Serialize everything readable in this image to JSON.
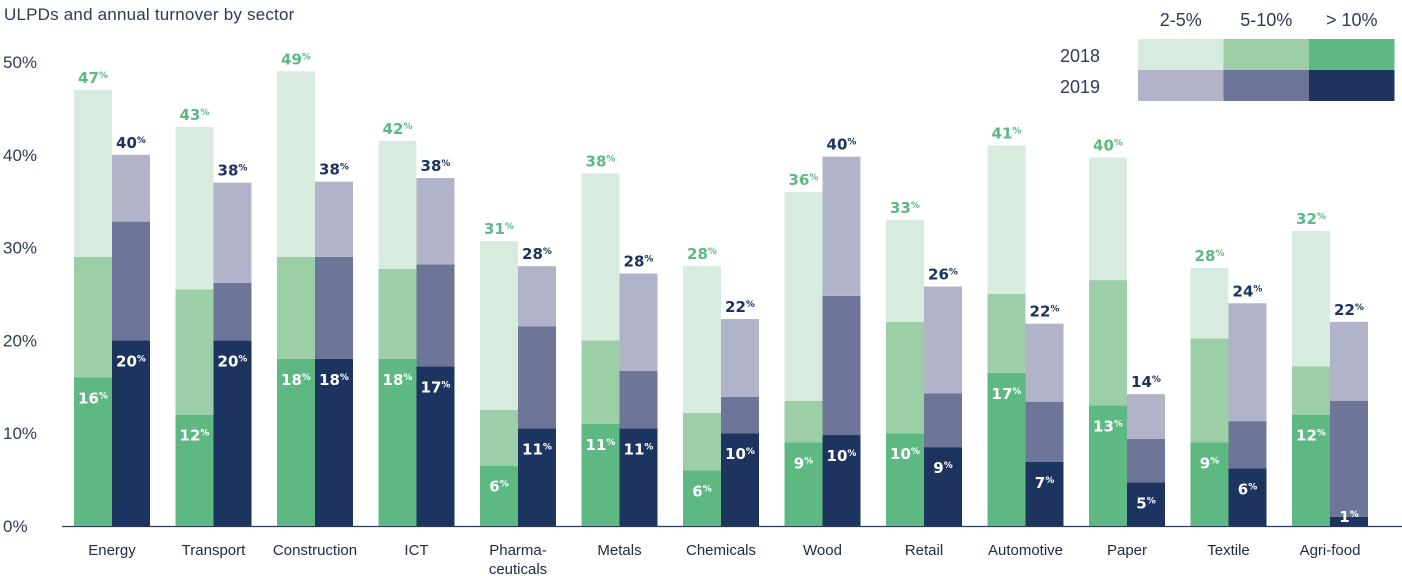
{
  "chart_data": {
    "type": "bar",
    "title": "ULPDs and annual turnover by sector",
    "categories": [
      "Energy",
      "Transport",
      "Construction",
      "ICT",
      "Pharma-ceuticals",
      "Metals",
      "Chemicals",
      "Wood",
      "Retail",
      "Automotive",
      "Paper",
      "Textile",
      "Agri-food"
    ],
    "category_lines": [
      [
        "Energy"
      ],
      [
        "Transport"
      ],
      [
        "Construction"
      ],
      [
        "ICT"
      ],
      [
        "Pharma-",
        "ceuticals"
      ],
      [
        "Metals"
      ],
      [
        "Chemicals"
      ],
      [
        "Wood"
      ],
      [
        "Retail"
      ],
      [
        "Automotive"
      ],
      [
        "Paper"
      ],
      [
        "Textile"
      ],
      [
        "Agri-food"
      ]
    ],
    "years": [
      "2018",
      "2019"
    ],
    "bands": [
      "> 10%",
      "5-10%",
      "2-5%"
    ],
    "legend_columns": [
      "2-5%",
      "5-10%",
      "> 10%"
    ],
    "ylim": [
      0,
      50
    ],
    "yticks": [
      0,
      10,
      20,
      30,
      40,
      50
    ],
    "ytick_labels": [
      "0%",
      "10%",
      "20%",
      "30%",
      "40%",
      "50%"
    ],
    "label_suffix": "%",
    "series": [
      {
        "year": "2018",
        "totals": [
          47,
          43,
          49,
          42,
          31,
          38,
          28,
          36,
          33,
          41,
          40,
          28,
          32
        ],
        "bottom_labels": [
          16,
          12,
          18,
          18,
          6,
          11,
          6,
          9,
          10,
          17,
          13,
          9,
          12
        ],
        "bands": {
          "> 10%": [
            16,
            12,
            18,
            18,
            6.5,
            11,
            6,
            9,
            10,
            16.5,
            13,
            9,
            12
          ],
          "5-10%": [
            13,
            13.5,
            11,
            9.7,
            6,
            9,
            6.2,
            4.5,
            12,
            8.5,
            13.5,
            11.2,
            5.2
          ],
          "2-5%": [
            18,
            17.5,
            20,
            13.8,
            18.2,
            18,
            15.8,
            22.5,
            11,
            16,
            13.2,
            7.6,
            14.6
          ]
        }
      },
      {
        "year": "2019",
        "totals": [
          40,
          38,
          38,
          38,
          28,
          28,
          22,
          40,
          26,
          22,
          14,
          24,
          22
        ],
        "bottom_labels": [
          20,
          20,
          18,
          17,
          11,
          11,
          10,
          10,
          9,
          7,
          5,
          6,
          1
        ],
        "bands": {
          "> 10%": [
            20,
            20,
            18,
            17.2,
            10.5,
            10.5,
            10,
            9.8,
            8.5,
            6.9,
            4.7,
            6.2,
            1
          ],
          "5-10%": [
            12.8,
            6.2,
            11,
            11,
            11,
            6.2,
            3.9,
            15,
            5.8,
            6.5,
            4.7,
            5.1,
            12.5
          ],
          "2-5%": [
            7.2,
            10.8,
            8.1,
            9.3,
            6.5,
            10.5,
            8.4,
            15,
            11.5,
            8.4,
            4.8,
            12.7,
            8.5
          ]
        }
      }
    ],
    "colors": {
      "2018": {
        "> 10%": "#5db981",
        "5-10%": "#9ccfa7",
        "2-5%": "#d8ebdf"
      },
      "2019": {
        "> 10%": "#1d3461",
        "5-10%": "#6d7599",
        "2-5%": "#b1b3c9"
      },
      "label_2018": "#5db981",
      "label_2019": "#1d3461",
      "axis": "#2f3a55"
    },
    "legend_position": "top-right",
    "grid": false
  }
}
